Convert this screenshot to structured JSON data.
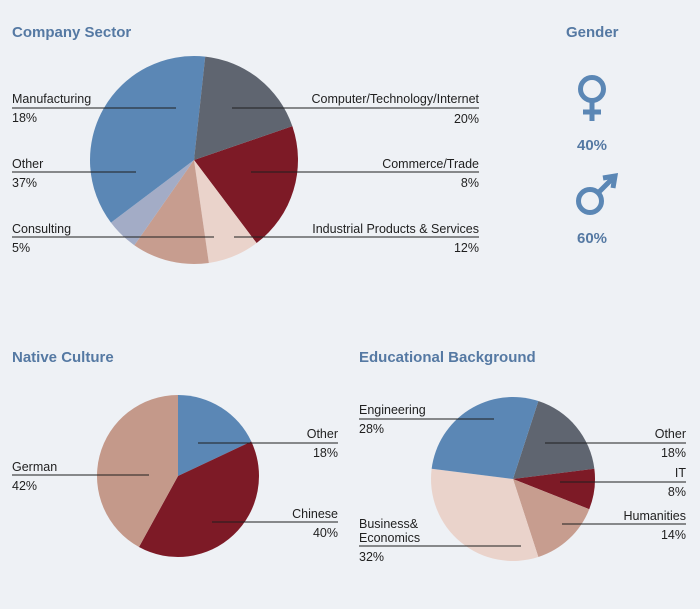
{
  "colors": {
    "title": "#5579a3",
    "blue": "#5b87b5",
    "dark_gray": "#5f6570",
    "maroon": "#7d1a26",
    "light_pink": "#ead3cb",
    "dusty_rose": "#c79d8f",
    "lavender": "#a3acc6",
    "rose": "#c4998a"
  },
  "gender": {
    "title": "Gender",
    "female_icon": "female-symbol-icon",
    "female_pct": "40%",
    "male_icon": "male-symbol-icon",
    "male_pct": "60%",
    "values": {
      "female": 40,
      "male": 60
    }
  },
  "chart_data": [
    {
      "type": "pie",
      "title": "Company Sector",
      "slices": [
        {
          "name": "Computer/Technology/Internet",
          "value": 20,
          "label": "20%",
          "color": "#7d1a26"
        },
        {
          "name": "Commerce/Trade",
          "value": 8,
          "label": "8%",
          "color": "#ead3cb"
        },
        {
          "name": "Industrial Products & Services",
          "value": 12,
          "label": "12%",
          "color": "#c79d8f"
        },
        {
          "name": "Consulting",
          "value": 5,
          "label": "5%",
          "color": "#a3acc6"
        },
        {
          "name": "Other",
          "value": 37,
          "label": "37%",
          "color": "#5b87b5"
        },
        {
          "name": "Manufacturing",
          "value": 18,
          "label": "18%",
          "color": "#5f6570"
        }
      ]
    },
    {
      "type": "pie",
      "title": "Native Culture",
      "slices": [
        {
          "name": "Other",
          "value": 18,
          "label": "18%",
          "color": "#5b87b5"
        },
        {
          "name": "Chinese",
          "value": 40,
          "label": "40%",
          "color": "#7d1a26"
        },
        {
          "name": "German",
          "value": 42,
          "label": "42%",
          "color": "#c4998a"
        }
      ]
    },
    {
      "type": "pie",
      "title": "Educational Background",
      "slices": [
        {
          "name": "Other",
          "value": 18,
          "label": "18%",
          "color": "#5f6570"
        },
        {
          "name": "IT",
          "value": 8,
          "label": "8%",
          "color": "#7d1a26"
        },
        {
          "name": "Humanities",
          "value": 14,
          "label": "14%",
          "color": "#c79d8f"
        },
        {
          "name": "Business& Economics",
          "value": 32,
          "label": "32%",
          "color": "#ead3cb"
        },
        {
          "name": "Engineering",
          "value": 28,
          "label": "28%",
          "color": "#5b87b5"
        }
      ]
    }
  ]
}
